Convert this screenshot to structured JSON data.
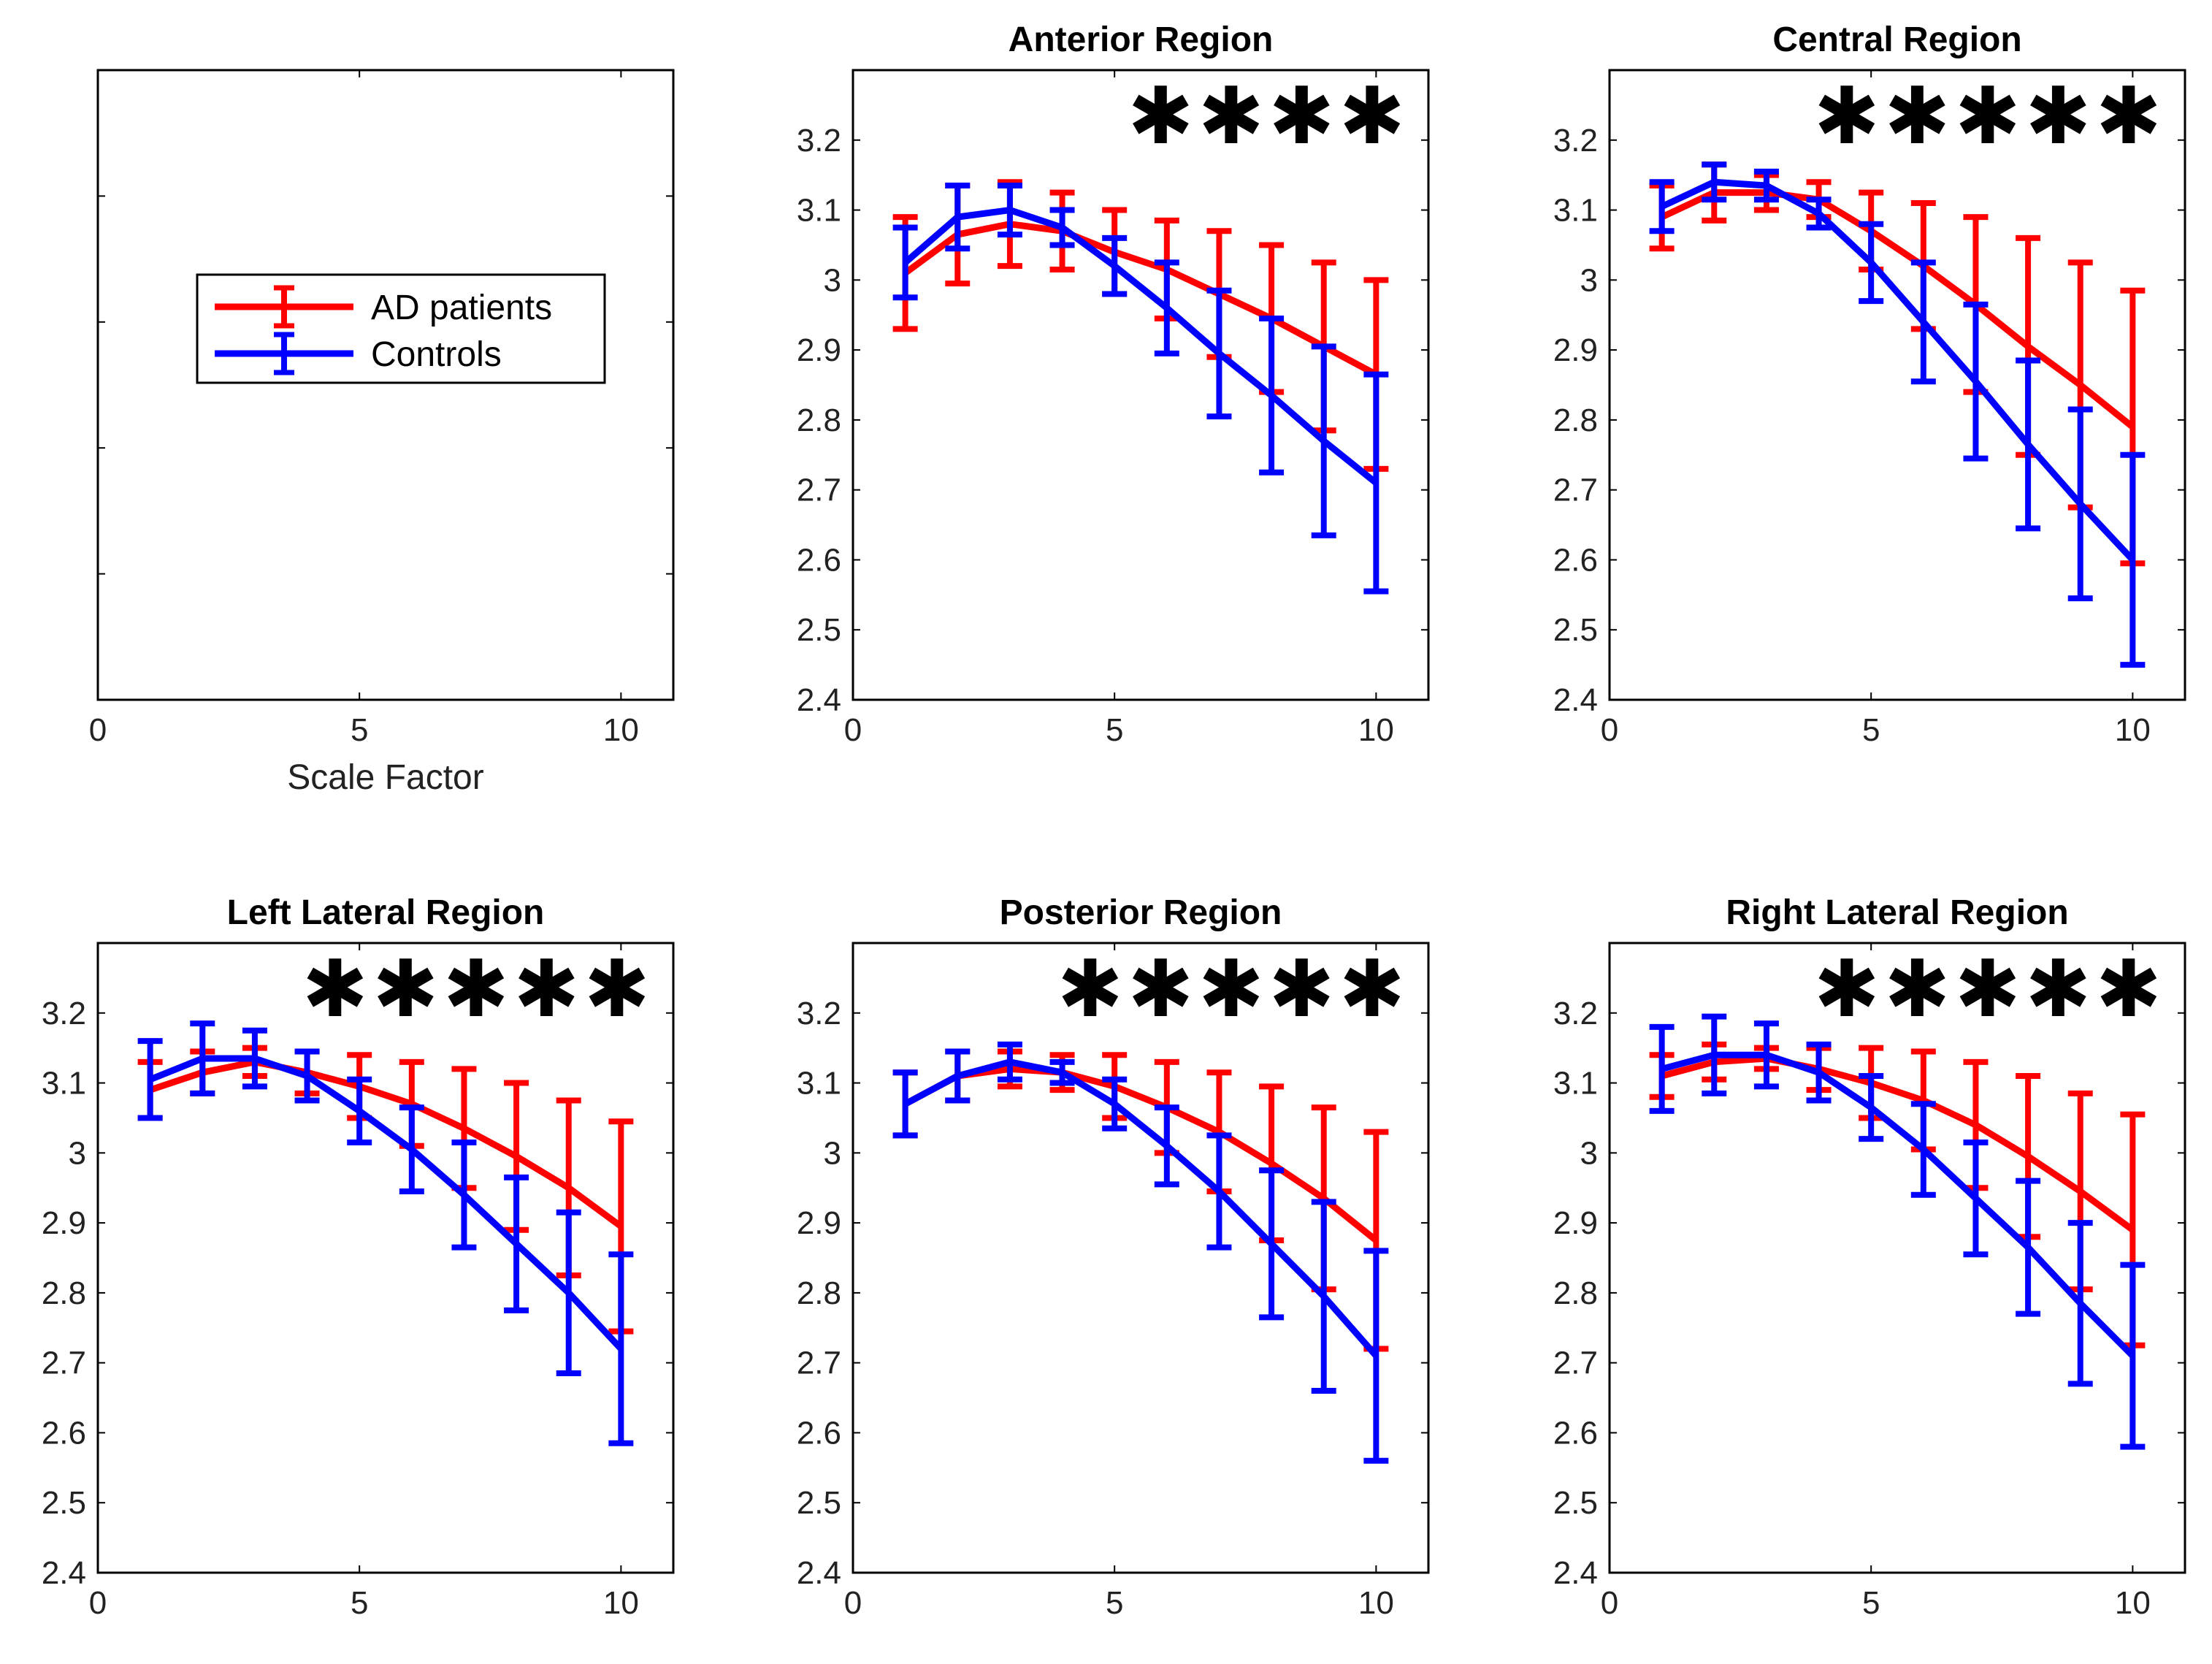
{
  "chart_data": {
    "type": "line",
    "series_styles": [
      {
        "name": "AD patients",
        "color": "#ff0000"
      },
      {
        "name": "Controls",
        "color": "#0000ff"
      }
    ],
    "legend": {
      "entries": [
        "AD patients",
        "Controls"
      ],
      "placement": "first-panel"
    },
    "x_label_first_panel": "Scale Factor",
    "x_ticks": [
      "0",
      "5",
      "10"
    ],
    "y_ticks": [
      "2.4",
      "2.5",
      "2.6",
      "2.7",
      "2.8",
      "2.9",
      "3",
      "3.1",
      "3.2"
    ],
    "panels": [
      {
        "id": "legend",
        "title": "",
        "is_legend_panel": true,
        "xlim": [
          0,
          11
        ],
        "xlabel": "Scale Factor"
      },
      {
        "id": "anterior",
        "title": "Anterior Region",
        "significance": "✱✱✱✱",
        "xlim": [
          0,
          11
        ],
        "ylim": [
          2.4,
          3.3
        ],
        "x": [
          1,
          2,
          3,
          4,
          5,
          6,
          7,
          8,
          9,
          10
        ],
        "series": [
          {
            "name": "AD patients",
            "color": "#ff0000",
            "values": [
              3.01,
              3.065,
              3.08,
              3.07,
              3.04,
              3.015,
              2.98,
              2.945,
              2.905,
              2.865
            ],
            "err": [
              0.08,
              0.07,
              0.06,
              0.055,
              0.06,
              0.07,
              0.09,
              0.105,
              0.12,
              0.135
            ]
          },
          {
            "name": "Controls",
            "color": "#0000ff",
            "values": [
              3.025,
              3.09,
              3.1,
              3.075,
              3.02,
              2.96,
              2.895,
              2.835,
              2.77,
              2.71
            ],
            "err": [
              0.05,
              0.045,
              0.035,
              0.025,
              0.04,
              0.065,
              0.09,
              0.11,
              0.135,
              0.155
            ]
          }
        ]
      },
      {
        "id": "central",
        "title": "Central Region",
        "significance": "✱✱✱✱✱",
        "xlim": [
          0,
          11
        ],
        "ylim": [
          2.4,
          3.3
        ],
        "x": [
          1,
          2,
          3,
          4,
          5,
          6,
          7,
          8,
          9,
          10
        ],
        "series": [
          {
            "name": "AD patients",
            "color": "#ff0000",
            "values": [
              3.09,
              3.125,
              3.125,
              3.115,
              3.07,
              3.02,
              2.965,
              2.905,
              2.85,
              2.79
            ],
            "err": [
              0.045,
              0.04,
              0.025,
              0.025,
              0.055,
              0.09,
              0.125,
              0.155,
              0.175,
              0.195
            ]
          },
          {
            "name": "Controls",
            "color": "#0000ff",
            "values": [
              3.105,
              3.14,
              3.135,
              3.095,
              3.025,
              2.94,
              2.855,
              2.765,
              2.68,
              2.6
            ],
            "err": [
              0.035,
              0.025,
              0.02,
              0.02,
              0.055,
              0.085,
              0.11,
              0.12,
              0.135,
              0.15
            ]
          }
        ]
      },
      {
        "id": "left-lateral",
        "title": "Left Lateral Region",
        "significance": "✱✱✱✱✱",
        "xlim": [
          0,
          11
        ],
        "ylim": [
          2.4,
          3.3
        ],
        "x": [
          1,
          2,
          3,
          4,
          5,
          6,
          7,
          8,
          9,
          10
        ],
        "series": [
          {
            "name": "AD patients",
            "color": "#ff0000",
            "values": [
              3.09,
              3.115,
              3.13,
              3.115,
              3.095,
              3.07,
              3.035,
              2.995,
              2.95,
              2.895
            ],
            "err": [
              0.04,
              0.03,
              0.02,
              0.03,
              0.045,
              0.06,
              0.085,
              0.105,
              0.125,
              0.15
            ]
          },
          {
            "name": "Controls",
            "color": "#0000ff",
            "values": [
              3.105,
              3.135,
              3.135,
              3.11,
              3.06,
              3.005,
              2.94,
              2.87,
              2.8,
              2.72
            ],
            "err": [
              0.055,
              0.05,
              0.04,
              0.035,
              0.045,
              0.06,
              0.075,
              0.095,
              0.115,
              0.135
            ]
          }
        ]
      },
      {
        "id": "posterior",
        "title": "Posterior Region",
        "significance": "✱✱✱✱✱",
        "xlim": [
          0,
          11
        ],
        "ylim": [
          2.4,
          3.3
        ],
        "x": [
          1,
          2,
          3,
          4,
          5,
          6,
          7,
          8,
          9,
          10
        ],
        "series": [
          {
            "name": "AD patients",
            "color": "#ff0000",
            "values": [
              3.07,
              3.11,
              3.12,
              3.115,
              3.095,
              3.065,
              3.03,
              2.985,
              2.935,
              2.875
            ],
            "err": [
              0.045,
              0.035,
              0.025,
              0.025,
              0.045,
              0.065,
              0.085,
              0.11,
              0.13,
              0.155
            ]
          },
          {
            "name": "Controls",
            "color": "#0000ff",
            "values": [
              3.07,
              3.11,
              3.13,
              3.115,
              3.07,
              3.01,
              2.945,
              2.87,
              2.795,
              2.71
            ],
            "err": [
              0.045,
              0.035,
              0.025,
              0.015,
              0.035,
              0.055,
              0.08,
              0.105,
              0.135,
              0.15
            ]
          }
        ]
      },
      {
        "id": "right-lateral",
        "title": "Right Lateral Region",
        "significance": "✱✱✱✱✱",
        "xlim": [
          0,
          11
        ],
        "ylim": [
          2.4,
          3.3
        ],
        "x": [
          1,
          2,
          3,
          4,
          5,
          6,
          7,
          8,
          9,
          10
        ],
        "series": [
          {
            "name": "AD patients",
            "color": "#ff0000",
            "values": [
              3.11,
              3.13,
              3.135,
              3.12,
              3.1,
              3.075,
              3.04,
              2.995,
              2.945,
              2.89
            ],
            "err": [
              0.03,
              0.025,
              0.015,
              0.03,
              0.05,
              0.07,
              0.09,
              0.115,
              0.14,
              0.165
            ]
          },
          {
            "name": "Controls",
            "color": "#0000ff",
            "values": [
              3.12,
              3.14,
              3.14,
              3.115,
              3.065,
              3.005,
              2.935,
              2.865,
              2.785,
              2.71
            ],
            "err": [
              0.06,
              0.055,
              0.045,
              0.04,
              0.045,
              0.065,
              0.08,
              0.095,
              0.115,
              0.13
            ]
          }
        ]
      }
    ]
  }
}
